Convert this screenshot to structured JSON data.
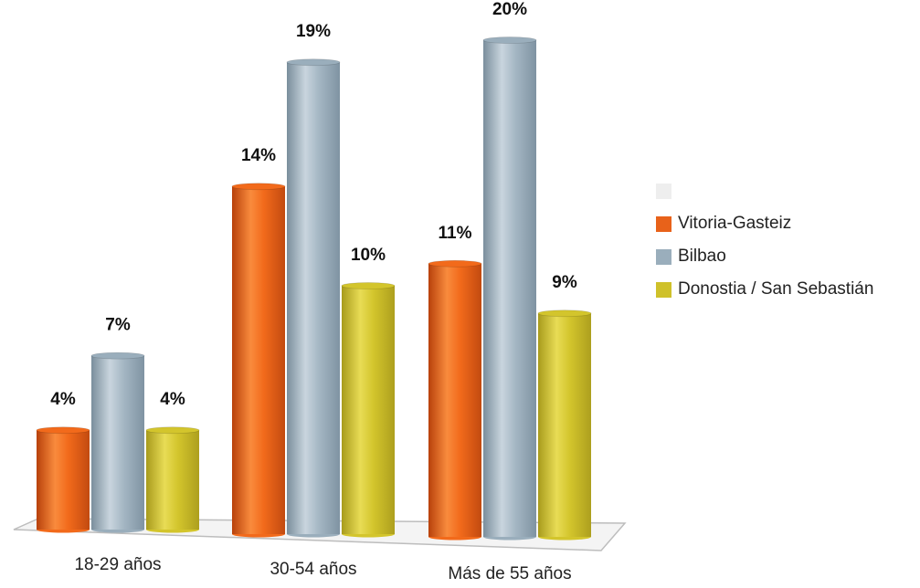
{
  "chart_data": {
    "type": "bar",
    "style": "3d-cylinder",
    "categories": [
      "18-29 años",
      "30-54 años",
      "Más de 55 años"
    ],
    "series": [
      {
        "name": "Vitoria-Gasteiz",
        "values": [
          4,
          14,
          11
        ],
        "labels": [
          "4%",
          "14%",
          "11%"
        ],
        "color": "#f26a1b"
      },
      {
        "name": "Bilbao",
        "values": [
          7,
          19,
          20
        ],
        "labels": [
          "7%",
          "19%",
          "20%"
        ],
        "color": "#9aaebc"
      },
      {
        "name": "Donostia / San Sebastián",
        "values": [
          4,
          10,
          9
        ],
        "labels": [
          "4%",
          "10%",
          "9%"
        ],
        "color": "#d3c52c"
      }
    ],
    "ylim": [
      0,
      20
    ],
    "grid": false,
    "legend_position": "right",
    "legend_blank_entry_color": "#eeeeee"
  }
}
